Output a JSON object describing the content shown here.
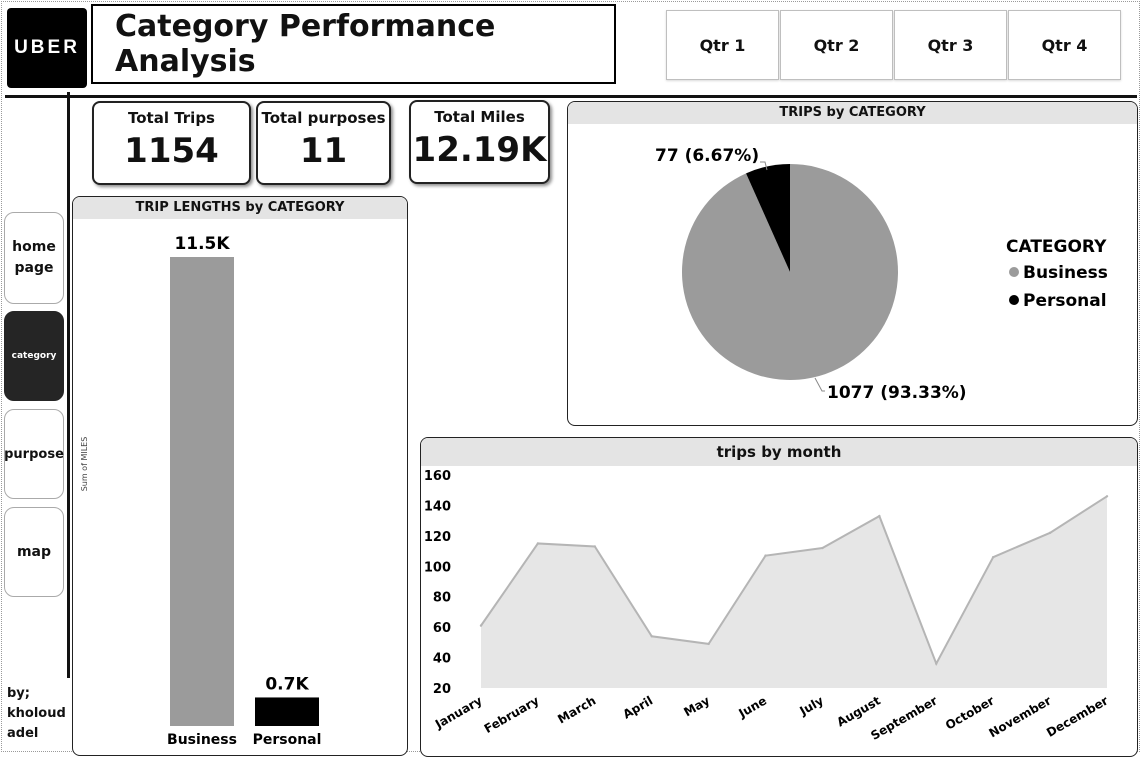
{
  "header": {
    "logo": "UBER",
    "title": "Category Performance Analysis",
    "quarters": [
      "Qtr 1",
      "Qtr 2",
      "Qtr 3",
      "Qtr 4"
    ]
  },
  "nav": {
    "home": "home page",
    "category": "category",
    "purpose": "purpose",
    "map": "map"
  },
  "author": {
    "line1": "by;",
    "line2": "kholoud",
    "line3": "adel"
  },
  "kpis": [
    {
      "label": "Total Trips",
      "value": "1154"
    },
    {
      "label": "Total purposes",
      "value": "11"
    },
    {
      "label": "Total Miles",
      "value": "12.19K"
    }
  ],
  "colors": {
    "business": "#9b9b9b",
    "personal": "#000000",
    "area_fill": "#e6e6e6",
    "area_line": "#b5b5b5"
  },
  "chart_data": [
    {
      "type": "bar",
      "title": "TRIP LENGTHS by CATEGORY",
      "ylabel": "Sum of MILES",
      "categories": [
        "Business",
        "Personal"
      ],
      "values": [
        11.5,
        0.7
      ],
      "data_labels": [
        "11.5K",
        "0.7K"
      ],
      "unit": "K"
    },
    {
      "type": "pie",
      "title": "TRIPS by CATEGORY",
      "legend_title": "CATEGORY",
      "legend_position": "right",
      "categories": [
        "Business",
        "Personal"
      ],
      "values": [
        1077,
        77
      ],
      "data_labels": [
        "1077 (93.33%)",
        "77 (6.67%)"
      ]
    },
    {
      "type": "area",
      "title": "trips by month",
      "categories": [
        "January",
        "February",
        "March",
        "April",
        "May",
        "June",
        "July",
        "August",
        "September",
        "October",
        "November",
        "December"
      ],
      "values": [
        61,
        115,
        113,
        54,
        49,
        107,
        112,
        133,
        36,
        106,
        122,
        146
      ],
      "ylim": [
        20,
        160
      ],
      "yticks": [
        160,
        140,
        120,
        100,
        80,
        60,
        40,
        20
      ],
      "grid": false
    }
  ]
}
